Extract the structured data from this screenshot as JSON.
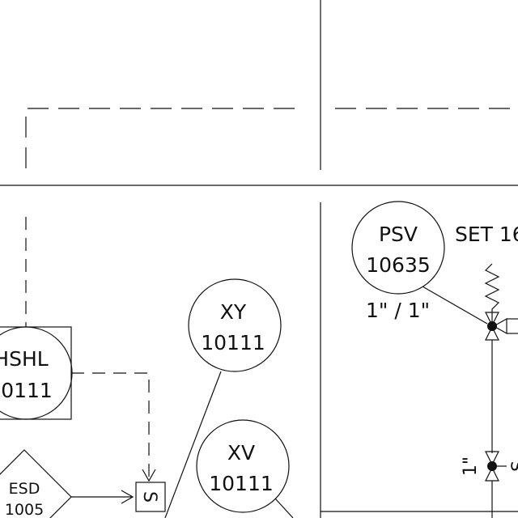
{
  "instruments": {
    "psv": {
      "tag": "PSV",
      "number": "10635",
      "size": "1\" / 1\"",
      "set": "SET 16"
    },
    "xy": {
      "tag": "XY",
      "number": "10111"
    },
    "xv": {
      "tag": "XV",
      "number": "10111"
    },
    "hshl": {
      "tag": "HSHL",
      "number": "0111"
    },
    "esd": {
      "tag": "ESD",
      "number": "1005"
    },
    "solenoid": {
      "label": "S"
    },
    "pipe_size": "1\"",
    "edge_glyph": "S"
  }
}
